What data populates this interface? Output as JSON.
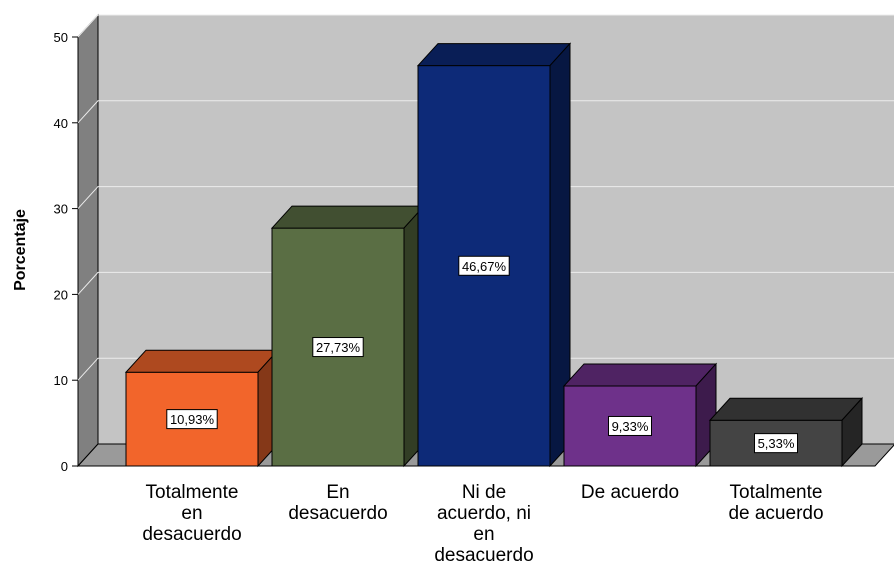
{
  "chart_data": {
    "type": "bar",
    "categories": [
      [
        "Totalmente",
        "en",
        "desacuerdo"
      ],
      [
        "En",
        "desacuerdo"
      ],
      [
        "Ni de",
        "acuerdo, ni",
        "en",
        "desacuerdo"
      ],
      [
        "De acuerdo"
      ],
      [
        "Totalmente",
        "de acuerdo"
      ]
    ],
    "values": [
      10.93,
      27.73,
      46.67,
      9.33,
      5.33
    ],
    "data_labels": [
      "10,93%",
      "27,73%",
      "46,67%",
      "9,33%",
      "5,33%"
    ],
    "colors": [
      "#f2652b",
      "#5a6e44",
      "#0d2a78",
      "#6e318a",
      "#444444"
    ],
    "ylabel": "Porcentaje",
    "ylim": [
      0,
      50
    ],
    "yticks": [
      "0",
      "10",
      "20",
      "30",
      "40",
      "50"
    ],
    "grid": true
  }
}
